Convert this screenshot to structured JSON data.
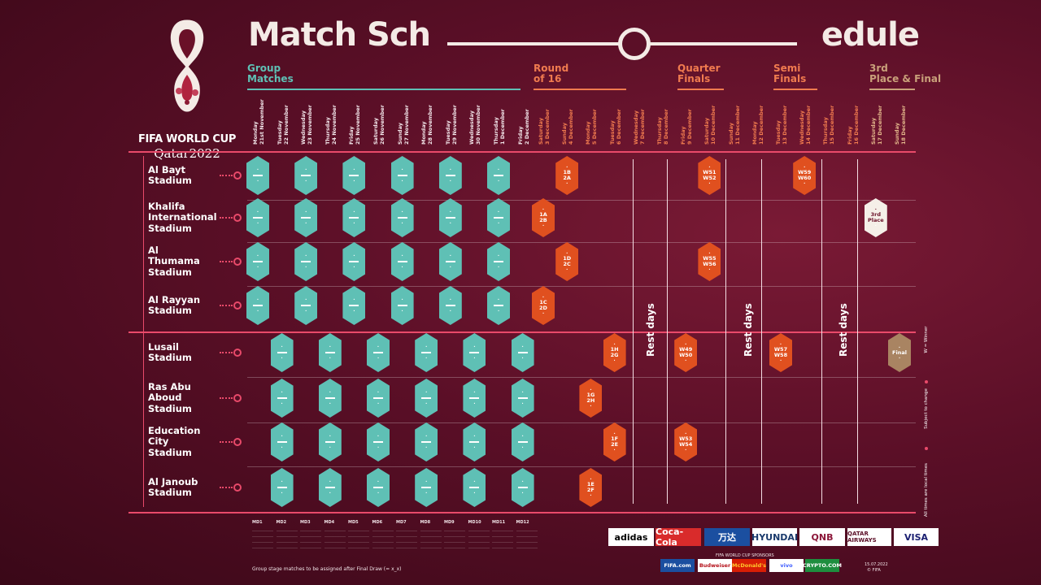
{
  "logo": {
    "title": "FIFA WORLD CUP",
    "subtitle": "Qatar2022"
  },
  "title": {
    "left": "Match Sch",
    "right": "edule"
  },
  "stages": [
    {
      "label": "Group Matches",
      "color": "#5fc0b5"
    },
    {
      "label": "Round of 16",
      "color": "#f07b4f"
    },
    {
      "label": "Quarter Finals",
      "color": "#f07b4f"
    },
    {
      "label": "Semi Finals",
      "color": "#f07b4f"
    },
    {
      "label": "3rd Place & Final",
      "color": "#c9a07a"
    }
  ],
  "dates": [
    {
      "d": "Monday",
      "n": "21st November"
    },
    {
      "d": "Tuesday",
      "n": "22 November"
    },
    {
      "d": "Wednesday",
      "n": "23 November"
    },
    {
      "d": "Thursday",
      "n": "24 November"
    },
    {
      "d": "Friday",
      "n": "25 November"
    },
    {
      "d": "Saturday",
      "n": "26 November"
    },
    {
      "d": "Sunday",
      "n": "27 November"
    },
    {
      "d": "Monday",
      "n": "28 November"
    },
    {
      "d": "Tuesday",
      "n": "29 November"
    },
    {
      "d": "Wednesday",
      "n": "30 November"
    },
    {
      "d": "Thursday",
      "n": "1 December"
    },
    {
      "d": "Friday",
      "n": "2 December"
    },
    {
      "d": "Saturday",
      "n": "3 December"
    },
    {
      "d": "Sunday",
      "n": "4 December"
    },
    {
      "d": "Monday",
      "n": "5 December"
    },
    {
      "d": "Tuesday",
      "n": "6 December"
    },
    {
      "d": "Wednesday",
      "n": "7 December"
    },
    {
      "d": "Thursday",
      "n": "8 December"
    },
    {
      "d": "Friday",
      "n": "9 December"
    },
    {
      "d": "Saturday",
      "n": "10 December"
    },
    {
      "d": "Sunday",
      "n": "11 December"
    },
    {
      "d": "Monday",
      "n": "12 December"
    },
    {
      "d": "Tuesday",
      "n": "13 December"
    },
    {
      "d": "Wednesday",
      "n": "14 December"
    },
    {
      "d": "Thursday",
      "n": "15 December"
    },
    {
      "d": "Friday",
      "n": "16 December"
    },
    {
      "d": "Saturday",
      "n": "17 December"
    },
    {
      "d": "Sunday",
      "n": "18 December"
    }
  ],
  "stadiums": [
    {
      "name": "Al Bayt\nStadium"
    },
    {
      "name": "Khalifa\nInternational\nStadium"
    },
    {
      "name": "Al\nThumama\nStadium"
    },
    {
      "name": "Al Rayyan\nStadium"
    },
    {
      "name": "Lusail\nStadium"
    },
    {
      "name": "Ras Abu\nAboud\nStadium"
    },
    {
      "name": "Education\nCity\nStadium"
    },
    {
      "name": "Al Janoub\nStadium"
    }
  ],
  "knockouts": [
    {
      "text": "1B\n2A"
    },
    {
      "text": "1A\n2B"
    },
    {
      "text": "1D\n2C"
    },
    {
      "text": "1C\n2D"
    },
    {
      "text": "1H\n2G"
    },
    {
      "text": "1G\n2H"
    },
    {
      "text": "1F\n2E"
    },
    {
      "text": "1E\n2F"
    },
    {
      "text": "W51\nW52"
    },
    {
      "text": "W55\nW56"
    },
    {
      "text": "W49\nW50"
    },
    {
      "text": "W53\nW54"
    },
    {
      "text": "W59\nW60"
    },
    {
      "text": "W57\nW58"
    },
    {
      "text": "3rd\nPlace"
    },
    {
      "text": "Final"
    }
  ],
  "rest_days": "Rest days",
  "side_notes": [
    "W = Winner",
    "Subject to change",
    "All times are local times"
  ],
  "draw_heads": [
    "MD1",
    "MD2",
    "MD3",
    "MD4",
    "MD5",
    "MD6",
    "MD7",
    "MD8",
    "MD9",
    "MD10",
    "MD11",
    "MD12"
  ],
  "draw_note": "Group stage matches to be assigned after Final Draw (= x_x)",
  "sponsors": [
    "adidas",
    "Coca-Cola",
    "万达",
    "HYUNDAI",
    "QNB",
    "QATAR AIRWAYS",
    "VISA"
  ],
  "supporters": [
    "FIFA.com",
    "Budweiser",
    "McDonald's",
    "vivo",
    "CRYPTO.COM"
  ],
  "supporters_label": "FIFA WORLD CUP SPONSORS",
  "footer_date": "15.07.2022",
  "footer_copy": "© FIFA",
  "colors": {
    "group": "#5fc0b5",
    "knockout": "#e0501f",
    "final": "#a98462",
    "accent": "#e94a6a"
  }
}
